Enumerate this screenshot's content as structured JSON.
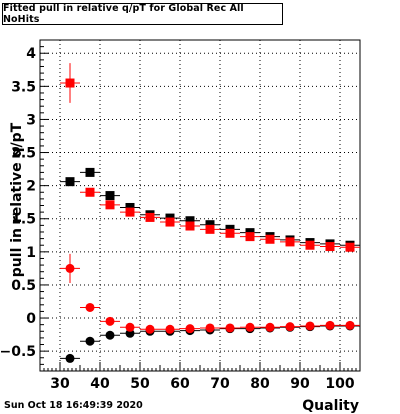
{
  "chart_data": {
    "type": "scatter",
    "title": "Fitted pull in relative q/pT for Global Rec All NoHits",
    "xlabel": "Quality",
    "ylabel": "pull in relative q/pT",
    "xlim": [
      25,
      105
    ],
    "ylim": [
      -0.8,
      4.2
    ],
    "x_ticks": [
      30,
      40,
      50,
      60,
      70,
      80,
      90,
      100
    ],
    "y_ticks": [
      -0.5,
      0,
      0.5,
      1,
      1.5,
      2,
      2.5,
      3,
      3.5,
      4
    ],
    "y_tick_labels": [
      "−0.5",
      "0",
      "0.5",
      "1",
      "1.5",
      "2",
      "2.5",
      "3",
      "3.5",
      "4"
    ],
    "grid": true,
    "series": [
      {
        "color": "#000000",
        "marker": "square",
        "x": [
          32.5,
          37.5,
          42.5,
          47.5,
          52.5,
          57.5,
          62.5,
          67.5,
          72.5,
          77.5,
          82.5,
          87.5,
          92.5,
          97.5,
          102.5
        ],
        "y": [
          2.06,
          2.2,
          1.85,
          1.67,
          1.56,
          1.51,
          1.47,
          1.41,
          1.34,
          1.29,
          1.23,
          1.18,
          1.14,
          1.12,
          1.1
        ]
      },
      {
        "color": "#ff0000",
        "marker": "square",
        "x": [
          32.5,
          37.5,
          42.5,
          47.5,
          52.5,
          57.5,
          62.5,
          67.5,
          72.5,
          77.5,
          82.5,
          87.5,
          92.5,
          97.5,
          102.5
        ],
        "y": [
          3.55,
          1.9,
          1.71,
          1.6,
          1.52,
          1.45,
          1.39,
          1.34,
          1.28,
          1.23,
          1.19,
          1.15,
          1.1,
          1.08,
          1.07
        ]
      },
      {
        "color": "#000000",
        "marker": "circle",
        "x": [
          32.5,
          37.5,
          42.5,
          47.5,
          52.5,
          57.5,
          62.5,
          67.5,
          72.5,
          77.5,
          82.5,
          87.5,
          92.5,
          97.5,
          102.5
        ],
        "y": [
          -0.61,
          -0.35,
          -0.26,
          -0.23,
          -0.2,
          -0.2,
          -0.19,
          -0.18,
          -0.16,
          -0.16,
          -0.15,
          -0.14,
          -0.13,
          -0.12,
          -0.12
        ]
      },
      {
        "color": "#ff0000",
        "marker": "circle",
        "x": [
          32.5,
          37.5,
          42.5,
          47.5,
          52.5,
          57.5,
          62.5,
          67.5,
          72.5,
          77.5,
          82.5,
          87.5,
          92.5,
          97.5,
          102.5
        ],
        "y": [
          0.75,
          0.16,
          -0.05,
          -0.14,
          -0.17,
          -0.17,
          -0.16,
          -0.15,
          -0.15,
          -0.14,
          -0.14,
          -0.13,
          -0.12,
          -0.11,
          -0.11
        ]
      }
    ]
  },
  "footer": {
    "timestamp": "Sun Oct 18 16:49:39 2020"
  }
}
